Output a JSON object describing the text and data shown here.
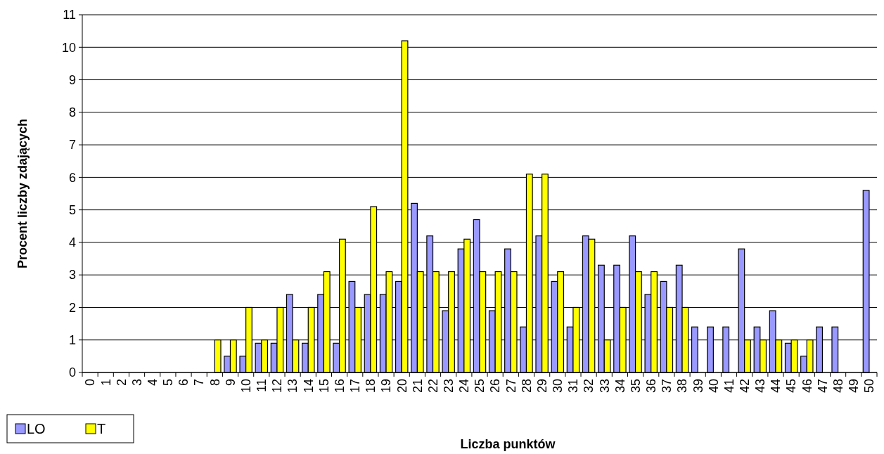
{
  "chart_data": {
    "type": "bar",
    "xlabel": "Liczba punktów",
    "ylabel": "Procent liczby zdających",
    "categories": [
      "0",
      "1",
      "2",
      "3",
      "4",
      "5",
      "6",
      "7",
      "8",
      "9",
      "10",
      "11",
      "12",
      "13",
      "14",
      "15",
      "16",
      "17",
      "18",
      "19",
      "20",
      "21",
      "22",
      "23",
      "24",
      "25",
      "26",
      "27",
      "28",
      "29",
      "30",
      "31",
      "32",
      "33",
      "34",
      "35",
      "36",
      "37",
      "38",
      "39",
      "40",
      "41",
      "42",
      "43",
      "44",
      "45",
      "46",
      "47",
      "48",
      "49",
      "50"
    ],
    "series": [
      {
        "name": "LO",
        "color": "#9999ff",
        "values": [
          0,
          0,
          0,
          0,
          0,
          0,
          0,
          0,
          0,
          0.5,
          0.5,
          0.9,
          0.9,
          2.4,
          0.9,
          2.4,
          0.9,
          2.8,
          2.4,
          2.4,
          2.8,
          5.2,
          4.2,
          1.9,
          3.8,
          4.7,
          1.9,
          3.8,
          1.4,
          4.2,
          2.8,
          1.4,
          4.2,
          3.3,
          3.3,
          4.2,
          2.4,
          2.8,
          3.3,
          1.4,
          1.4,
          1.4,
          3.8,
          1.4,
          1.9,
          0.9,
          0.5,
          1.4,
          1.4,
          0,
          5.6
        ]
      },
      {
        "name": "T",
        "color": "#ffff00",
        "values": [
          0,
          0,
          0,
          0,
          0,
          0,
          0,
          0,
          1.0,
          1.0,
          2.0,
          1.0,
          2.0,
          1.0,
          2.0,
          3.1,
          4.1,
          2.0,
          5.1,
          3.1,
          10.2,
          3.1,
          3.1,
          3.1,
          4.1,
          3.1,
          3.1,
          3.1,
          6.1,
          6.1,
          3.1,
          2.0,
          4.1,
          1.0,
          2.0,
          3.1,
          3.1,
          2.0,
          2.0,
          0,
          0,
          0,
          1.0,
          1.0,
          1.0,
          1.0,
          1.0,
          0,
          0,
          0,
          0
        ]
      }
    ],
    "ylim": [
      0,
      11
    ],
    "yticks": [
      0,
      1,
      2,
      3,
      4,
      5,
      6,
      7,
      8,
      9,
      10,
      11
    ],
    "grid": "y",
    "legend": "bottom left"
  }
}
